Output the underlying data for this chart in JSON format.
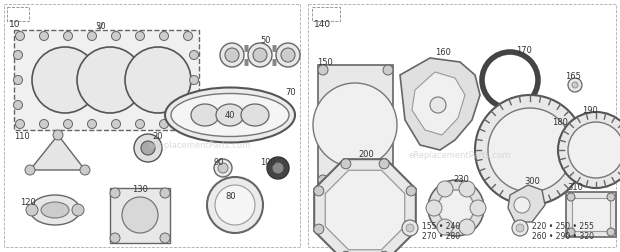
{
  "bg_color": "#ffffff",
  "panel_bg": "#f5f5f3",
  "line_color": "#555555",
  "dark_color": "#333333",
  "text_color": "#333333",
  "fig_width": 6.2,
  "fig_height": 2.52,
  "dpi": 100
}
